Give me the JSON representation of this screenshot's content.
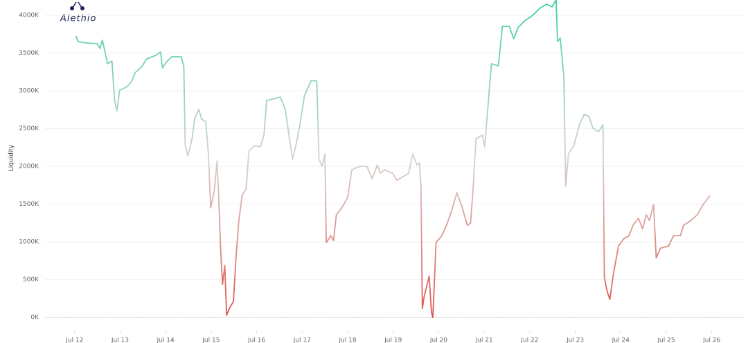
{
  "chart_data": {
    "type": "line",
    "logo": "Alethio",
    "ylabel": "Liquidity",
    "xlim": [
      11.35,
      26.72
    ],
    "ylim": [
      -200000,
      4202000
    ],
    "xticks": [
      {
        "value": 12,
        "label": "Jul 12"
      },
      {
        "value": 13,
        "label": "Jul 13"
      },
      {
        "value": 14,
        "label": "Jul 14"
      },
      {
        "value": 15,
        "label": "Jul 15"
      },
      {
        "value": 16,
        "label": "Jul 16"
      },
      {
        "value": 17,
        "label": "Jul 17"
      },
      {
        "value": 18,
        "label": "Jul 18"
      },
      {
        "value": 19,
        "label": "Jul 19"
      },
      {
        "value": 20,
        "label": "Jul 20"
      },
      {
        "value": 21,
        "label": "Jul 21"
      },
      {
        "value": 22,
        "label": "Jul 22"
      },
      {
        "value": 23,
        "label": "Jul 23"
      },
      {
        "value": 24,
        "label": "Jul 24"
      },
      {
        "value": 25,
        "label": "Jul 25"
      },
      {
        "value": 26,
        "label": "Jul 26"
      }
    ],
    "yticks": [
      {
        "value": 0,
        "label": "0K"
      },
      {
        "value": 500000,
        "label": "500K"
      },
      {
        "value": 1000000,
        "label": "1000K"
      },
      {
        "value": 1500000,
        "label": "1500K"
      },
      {
        "value": 2000000,
        "label": "2000K"
      },
      {
        "value": 2500000,
        "label": "2500K"
      },
      {
        "value": 3000000,
        "label": "3000K"
      },
      {
        "value": 3500000,
        "label": "3500K"
      },
      {
        "value": 4000000,
        "label": "4000K"
      }
    ],
    "grid": true,
    "colors": [
      "#e0504c",
      "#d8d2cf",
      "#3dd1a0"
    ],
    "x": [
      12.03,
      12.08,
      12.26,
      12.49,
      12.56,
      12.61,
      12.67,
      12.72,
      12.82,
      12.88,
      12.93,
      12.99,
      13.13,
      13.25,
      13.33,
      13.48,
      13.58,
      13.78,
      13.89,
      13.93,
      14.01,
      14.13,
      14.34,
      14.4,
      14.43,
      14.49,
      14.58,
      14.64,
      14.73,
      14.79,
      14.88,
      14.94,
      14.99,
      15.07,
      15.13,
      15.16,
      15.21,
      15.25,
      15.3,
      15.34,
      15.4,
      15.49,
      15.55,
      15.61,
      15.68,
      15.77,
      15.83,
      15.95,
      16.08,
      16.16,
      16.22,
      16.41,
      16.52,
      16.63,
      16.72,
      16.79,
      16.87,
      16.95,
      17.05,
      17.2,
      17.32,
      17.37,
      17.44,
      17.5,
      17.53,
      17.63,
      17.69,
      17.75,
      17.87,
      18.0,
      18.09,
      18.27,
      18.42,
      18.54,
      18.65,
      18.72,
      18.81,
      18.99,
      19.08,
      19.34,
      19.43,
      19.52,
      19.58,
      19.61,
      19.64,
      19.68,
      19.79,
      19.84,
      19.87,
      19.91,
      19.94,
      20.07,
      20.17,
      20.28,
      20.4,
      20.52,
      20.63,
      20.7,
      20.75,
      20.82,
      20.96,
      21.01,
      21.08,
      21.16,
      21.31,
      21.4,
      21.55,
      21.65,
      21.74,
      21.89,
      22.07,
      22.22,
      22.37,
      22.49,
      22.58,
      22.61,
      22.67,
      22.75,
      22.79,
      22.85,
      22.97,
      23.09,
      23.2,
      23.3,
      23.39,
      23.51,
      23.61,
      23.64,
      23.7,
      23.76,
      23.84,
      23.95,
      24.06,
      24.18,
      24.27,
      24.39,
      24.48,
      24.56,
      24.63,
      24.72,
      24.78,
      24.87,
      25.05,
      25.16,
      25.31,
      25.38,
      25.54,
      25.68,
      25.81,
      25.96
    ],
    "series": [
      {
        "values": [
          3725000,
          3651000,
          3633000,
          3624000,
          3560000,
          3670000,
          3514000,
          3358000,
          3394000,
          2872000,
          2734000,
          3009000,
          3046000,
          3119000,
          3239000,
          3321000,
          3422000,
          3468000,
          3514000,
          3303000,
          3376000,
          3450000,
          3450000,
          3330000,
          2275000,
          2138000,
          2367000,
          2642000,
          2752000,
          2624000,
          2596000,
          2165000,
          1450000,
          1679000,
          2073000,
          1679000,
          899000,
          440000,
          688000,
          28000,
          119000,
          211000,
          826000,
          1284000,
          1615000,
          1706000,
          2202000,
          2275000,
          2257000,
          2413000,
          2872000,
          2899000,
          2917000,
          2752000,
          2367000,
          2092000,
          2294000,
          2550000,
          2936000,
          3137000,
          3128000,
          2092000,
          2000000,
          2165000,
          991000,
          1083000,
          1018000,
          1358000,
          1450000,
          1587000,
          1954000,
          2000000,
          2000000,
          1835000,
          2018000,
          1908000,
          1954000,
          1908000,
          1816000,
          1908000,
          2165000,
          2018000,
          2046000,
          1725000,
          119000,
          275000,
          550000,
          73000,
          0,
          532000,
          991000,
          1083000,
          1220000,
          1404000,
          1651000,
          1450000,
          1220000,
          1248000,
          1651000,
          2367000,
          2413000,
          2257000,
          2780000,
          3358000,
          3330000,
          3853000,
          3853000,
          3688000,
          3835000,
          3927000,
          4000000,
          4092000,
          4147000,
          4110000,
          4202000,
          3651000,
          3697000,
          3193000,
          1743000,
          2165000,
          2275000,
          2550000,
          2688000,
          2660000,
          2505000,
          2459000,
          2550000,
          532000,
          349000,
          239000,
          578000,
          945000,
          1037000,
          1083000,
          1220000,
          1312000,
          1174000,
          1358000,
          1284000,
          1495000,
          789000,
          917000,
          945000,
          1083000,
          1083000,
          1220000,
          1284000,
          1358000,
          1495000,
          1615000
        ]
      }
    ]
  }
}
